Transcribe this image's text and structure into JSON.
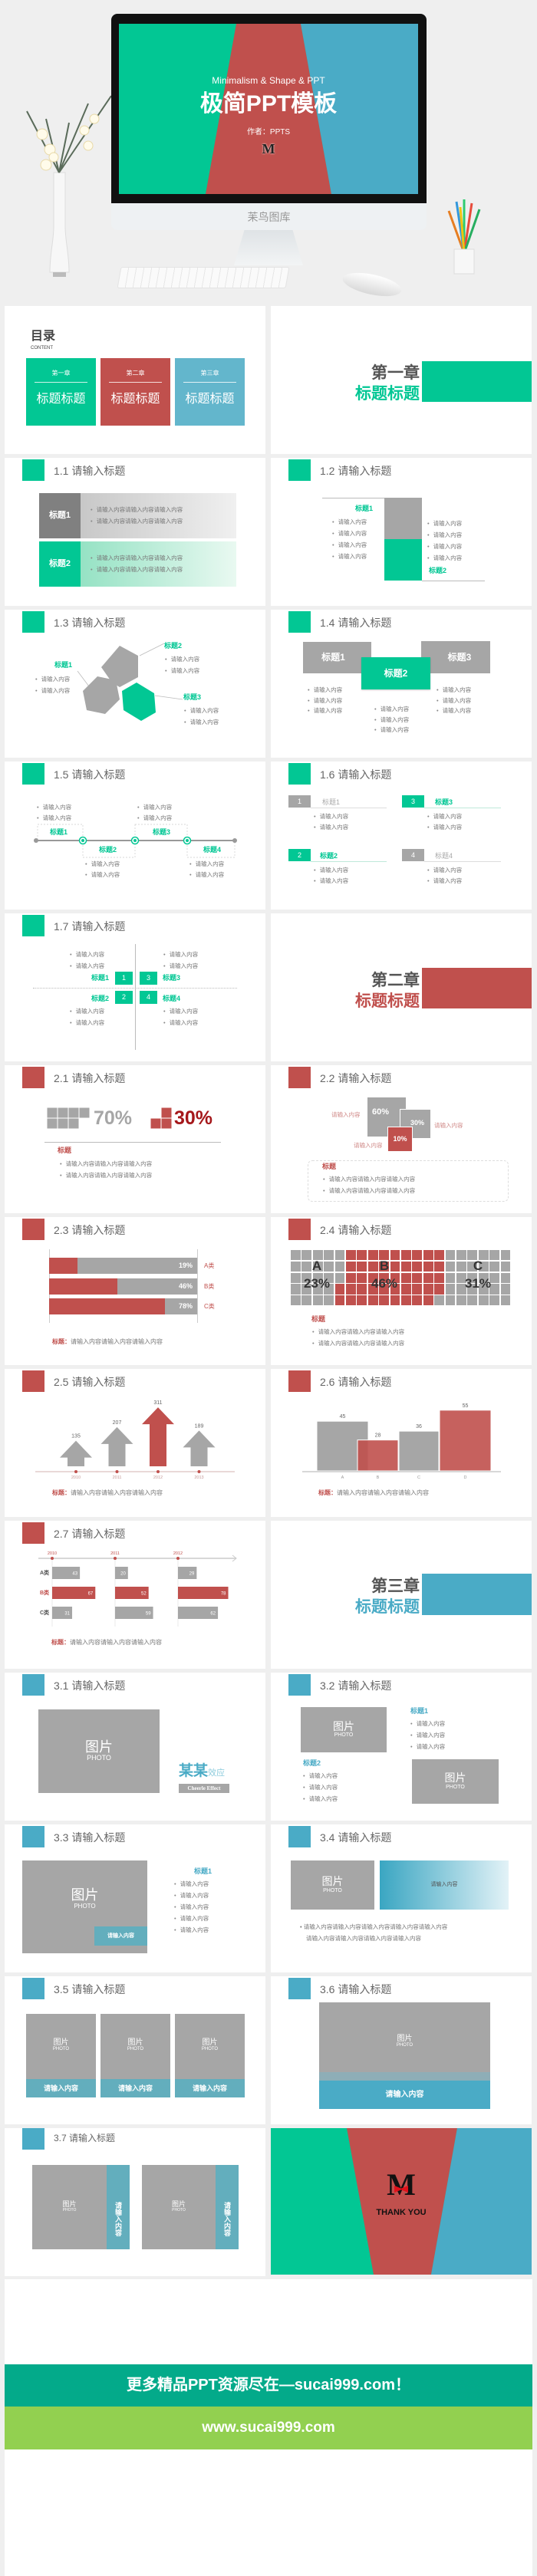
{
  "colors": {
    "green": "#02c794",
    "red": "#c0504d",
    "blue": "#4aabc6",
    "gray": "#a6a6a6"
  },
  "hero": {
    "subtitle": "Minimalism & Shape & PPT",
    "title": "极简PPT模板",
    "author": "作者：PPTS",
    "logo": "M",
    "chin": "苿鸟图库"
  },
  "toc": {
    "title": "目录",
    "sub": "CONTENT",
    "items": [
      {
        "chapter": "第一章",
        "title": "标题标题"
      },
      {
        "chapter": "第二章",
        "title": "标题标题"
      },
      {
        "chapter": "第三章",
        "title": "标题标题"
      }
    ]
  },
  "ch1": {
    "chapter": "第一章",
    "title": "标题标题"
  },
  "ch2": {
    "chapter": "第二章",
    "title": "标题标题"
  },
  "ch3": {
    "chapter": "第三章",
    "title": "标题标题"
  },
  "s11": {
    "title": "1.1 请输入标题",
    "rows": [
      {
        "label": "标题1",
        "bullets": [
          "请输入内容请输入内容请输入内容",
          "请输入内容请输入内容请输入内容"
        ]
      },
      {
        "label": "标题2",
        "bullets": [
          "请输入内容请输入内容请输入内容",
          "请输入内容请输入内容请输入内容"
        ]
      }
    ]
  },
  "s12": {
    "title": "1.2 请输入标题",
    "label1": "标题1",
    "label2": "标题2",
    "left": [
      "请输入内容",
      "请输入内容",
      "请输入内容",
      "请输入内容"
    ],
    "right": [
      "请输入内容",
      "请输入内容",
      "请输入内容",
      "请输入内容"
    ]
  },
  "s13": {
    "title": "1.3 请输入标题",
    "items": [
      {
        "label": "标题1",
        "bullets": [
          "请输入内容",
          "请输入内容"
        ]
      },
      {
        "label": "标题2",
        "bullets": [
          "请输入内容",
          "请输入内容"
        ]
      },
      {
        "label": "标题3",
        "bullets": [
          "请输入内容",
          "请输入内容"
        ]
      }
    ]
  },
  "s14": {
    "title": "1.4 请输入标题",
    "items": [
      {
        "label": "标题1",
        "bullets": [
          "请输入内容",
          "请输入内容",
          "请输入内容"
        ]
      },
      {
        "label": "标题2",
        "bullets": [
          "请输入内容",
          "请输入内容",
          "请输入内容"
        ]
      },
      {
        "label": "标题3",
        "bullets": [
          "请输入内容",
          "请输入内容",
          "请输入内容"
        ]
      }
    ]
  },
  "s15": {
    "title": "1.5 请输入标题",
    "items": [
      {
        "label": "标题1",
        "bullets": [
          "请输入内容",
          "请输入内容"
        ]
      },
      {
        "label": "标题2",
        "bullets": [
          "请输入内容",
          "请输入内容"
        ]
      },
      {
        "label": "标题3",
        "bullets": [
          "请输入内容",
          "请输入内容"
        ]
      },
      {
        "label": "标题4",
        "bullets": [
          "请输入内容",
          "请输入内容"
        ]
      }
    ]
  },
  "s16": {
    "title": "1.6 请输入标题",
    "items": [
      {
        "num": "1",
        "label": "标题1",
        "bullets": [
          "请输入内容",
          "请输入内容"
        ]
      },
      {
        "num": "2",
        "label": "标题2",
        "bullets": [
          "请输入内容",
          "请输入内容"
        ]
      },
      {
        "num": "3",
        "label": "标题3",
        "bullets": [
          "请输入内容",
          "请输入内容"
        ]
      },
      {
        "num": "4",
        "label": "标题4",
        "bullets": [
          "请输入内容",
          "请输入内容"
        ]
      }
    ]
  },
  "s17": {
    "title": "1.7 请输入标题",
    "items": [
      {
        "num": "1",
        "label": "标题1",
        "bullets": [
          "请输入内容",
          "请输入内容"
        ]
      },
      {
        "num": "2",
        "label": "标题2",
        "bullets": [
          "请输入内容",
          "请输入内容"
        ]
      },
      {
        "num": "3",
        "label": "标题3",
        "bullets": [
          "请输入内容",
          "请输入内容"
        ]
      },
      {
        "num": "4",
        "label": "标题4",
        "bullets": [
          "请输入内容",
          "请输入内容"
        ]
      }
    ]
  },
  "s21": {
    "title": "2.1 请输入标题",
    "pct_a": "70%",
    "pct_b": "30%",
    "label": "标题",
    "bullets": [
      "请输入内容请输入内容请输入内容",
      "请输入内容请输入内容请输入内容"
    ]
  },
  "s22": {
    "title": "2.2 请输入标题",
    "boxes": [
      {
        "value": "60%",
        "caption": "请输入内容"
      },
      {
        "value": "30%",
        "caption": "请输入内容"
      },
      {
        "value": "10%",
        "caption": "请输入内容"
      }
    ],
    "label": "标题",
    "bullets": [
      "请输入内容请输入内容请输入内容",
      "请输入内容请输入内容请输入内容"
    ]
  },
  "s23": {
    "title": "2.3 请输入标题",
    "note_label": "标题：",
    "note": "请输入内容请输入内容请输入内容"
  },
  "s24": {
    "title": "2.4 请输入标题",
    "label": "标题",
    "bullets": [
      "请输入内容请输入内容请输入内容",
      "请输入内容请输入内容请输入内容"
    ]
  },
  "s25": {
    "title": "2.5 请输入标题",
    "note_label": "标题：",
    "note": "请输入内容请输入内容请输入内容"
  },
  "s26": {
    "title": "2.6 请输入标题",
    "note_label": "标题：",
    "note": "请输入内容请输入内容请输入内容"
  },
  "s27": {
    "title": "2.7 请输入标题",
    "note_label": "标题：",
    "note": "请输入内容请输入内容请输入内容"
  },
  "chart_data": [
    {
      "id": "s23",
      "type": "bar",
      "orientation": "horizontal",
      "categories": [
        "A类",
        "B类",
        "C类"
      ],
      "values": [
        19,
        46,
        78
      ],
      "labels": [
        "19%",
        "46%",
        "78%"
      ],
      "ylim": [
        0,
        100
      ]
    },
    {
      "id": "s24",
      "type": "waffle",
      "categories": [
        "A",
        "B",
        "C"
      ],
      "values": [
        23,
        46,
        31
      ],
      "labels": [
        "23%",
        "46%",
        "31%"
      ],
      "grid": [
        20,
        5
      ]
    },
    {
      "id": "s25",
      "type": "bar",
      "categories": [
        "2010",
        "2011",
        "2012",
        "2013"
      ],
      "values": [
        135,
        207,
        311,
        189
      ],
      "highlight": "2012"
    },
    {
      "id": "s26",
      "type": "bar",
      "categories": [
        "A",
        "B",
        "C",
        "D"
      ],
      "values": [
        45,
        28,
        36,
        55
      ]
    },
    {
      "id": "s27",
      "type": "bar",
      "orientation": "horizontal",
      "x": [
        "2010",
        "2011",
        "2012"
      ],
      "series": [
        {
          "name": "A类",
          "values": [
            43,
            20,
            29
          ]
        },
        {
          "name": "B类",
          "values": [
            67,
            52,
            78
          ]
        },
        {
          "name": "C类",
          "values": [
            31,
            59,
            62
          ]
        }
      ]
    }
  ],
  "s31": {
    "title": "3.1 请输入标题",
    "photo": "图片",
    "photo_en": "PHOTO",
    "brand_main": "某某",
    "brand_sub": "效应",
    "brand_en": "Cheerle Effect"
  },
  "s32": {
    "title": "3.2 请输入标题",
    "photo": "图片",
    "photo_en": "PHOTO",
    "items": [
      {
        "label": "标题1",
        "bullets": [
          "请输入内容",
          "请输入内容",
          "请输入内容"
        ]
      },
      {
        "label": "标题2",
        "bullets": [
          "请输入内容",
          "请输入内容",
          "请输入内容"
        ]
      }
    ]
  },
  "s33": {
    "title": "3.3 请输入标题",
    "photo": "图片",
    "photo_en": "PHOTO",
    "caption": "请输入内容",
    "label": "标题1",
    "bullets": [
      "请输入内容",
      "请输入内容",
      "请输入内容",
      "请输入内容",
      "请输入内容"
    ]
  },
  "s34": {
    "title": "3.4 请输入标题",
    "photo": "图片",
    "photo_en": "PHOTO",
    "box": "请输入内容",
    "line1": "请输入内容请输入内容请输入内容请输入内容请输入内容",
    "line2": "请输入内容请输入内容请输入内容请输入内容"
  },
  "s35": {
    "title": "3.5 请输入标题",
    "photo": "图片",
    "photo_en": "PHOTO",
    "captions": [
      "请输入内容",
      "请输入内容",
      "请输入内容"
    ]
  },
  "s36": {
    "title": "3.6 请输入标题",
    "photo": "图片",
    "photo_en": "PHOTO",
    "caption": "请输入内容"
  },
  "s37": {
    "title": "3.7 请输入标题",
    "photo": "图片",
    "photo_en": "PHOTO",
    "captions": [
      "请输入内容",
      "请输入内容"
    ]
  },
  "thanks": {
    "logo": "M",
    "text": "THANK YOU"
  },
  "footer": {
    "line1": "更多精品PPT资源尽在—sucai999.com！",
    "line2": "www.sucai999.com"
  }
}
